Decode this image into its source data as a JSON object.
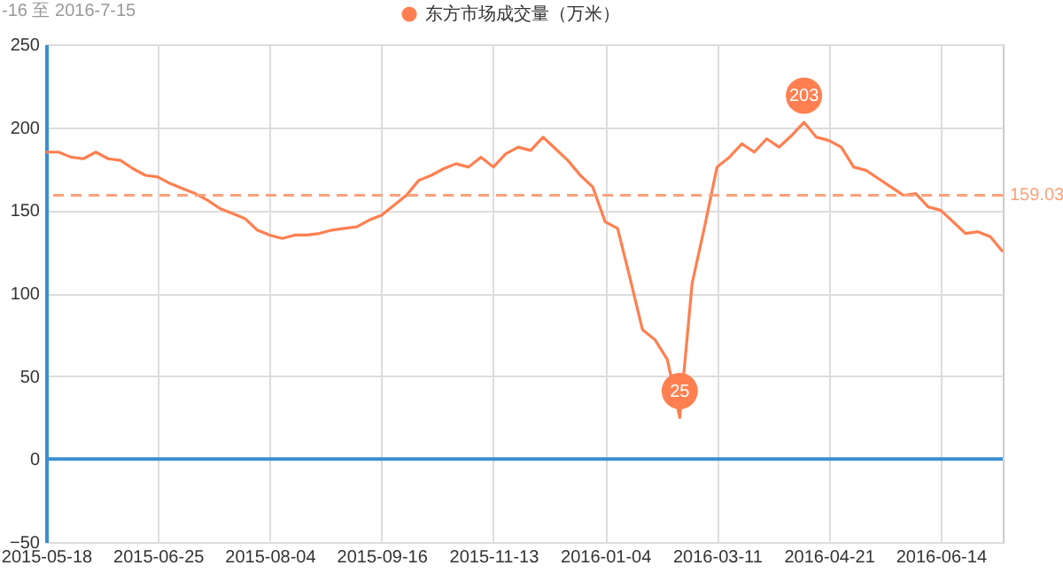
{
  "chart_data": {
    "type": "line",
    "title": "-16 至 2016-7-15",
    "categories": [
      "2015-05-18",
      null,
      null,
      null,
      null,
      null,
      null,
      null,
      null,
      "2015-06-25",
      null,
      null,
      null,
      null,
      null,
      null,
      null,
      null,
      "2015-08-04",
      null,
      null,
      null,
      null,
      null,
      null,
      null,
      null,
      "2015-09-16",
      null,
      null,
      null,
      null,
      null,
      null,
      null,
      null,
      "2015-11-13",
      null,
      null,
      null,
      null,
      null,
      null,
      null,
      null,
      "2016-01-04",
      null,
      null,
      null,
      null,
      null,
      null,
      null,
      null,
      "2016-03-11",
      null,
      null,
      null,
      null,
      null,
      null,
      null,
      null,
      "2016-04-21",
      null,
      null,
      null,
      null,
      null,
      null,
      null,
      null,
      "2016-06-14",
      null,
      null,
      null,
      null,
      null
    ],
    "series": [
      {
        "name": "东方市场成交量（万米）",
        "color": "#ff7f50",
        "values": [
          185,
          185,
          182,
          181,
          185,
          181,
          180,
          175,
          171,
          170,
          166,
          163,
          160,
          156,
          151,
          148,
          145,
          138,
          135,
          133,
          135,
          135,
          136,
          138,
          139,
          140,
          144,
          147,
          153,
          159,
          168,
          171,
          175,
          178,
          176,
          182,
          176,
          184,
          188,
          186,
          194,
          187,
          180,
          171,
          164,
          143,
          139,
          109,
          78,
          72,
          60,
          25,
          106,
          140,
          176,
          182,
          190,
          185,
          193,
          188,
          195,
          203,
          194,
          192,
          188,
          176,
          174,
          169,
          164,
          159,
          160,
          152,
          150,
          143,
          136,
          137,
          134,
          125
        ]
      }
    ],
    "ylim": [
      -50,
      250
    ],
    "yticks": [
      -50,
      0,
      50,
      100,
      150,
      200,
      250
    ],
    "grid": true,
    "legend": "top",
    "marker": "none",
    "line_style": "solid",
    "ref_lines": [
      {
        "axis": "y",
        "value": 159.03,
        "label": "159.03",
        "color": "#ffa07a",
        "line_style": "dashed"
      },
      {
        "axis": "y",
        "value": 0,
        "color": "#3a8fd0",
        "line_style": "solid"
      }
    ],
    "annotations": [
      {
        "text": "203",
        "y": 203
      },
      {
        "text": "25",
        "y": 25
      }
    ]
  }
}
